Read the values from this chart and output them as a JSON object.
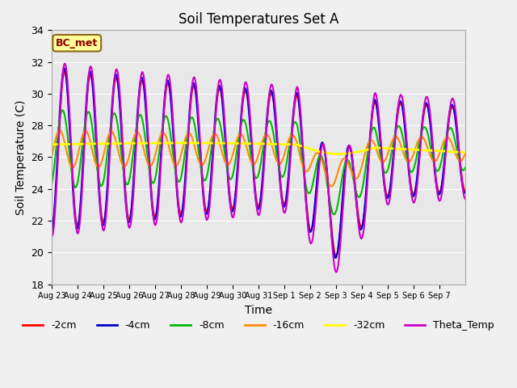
{
  "title": "Soil Temperatures Set A",
  "xlabel": "Time",
  "ylabel": "Soil Temperature (C)",
  "ylim": [
    18,
    34
  ],
  "annotation": "BC_met",
  "annotation_color": "#8B0000",
  "annotation_bg": "#FFFF99",
  "bg_color": "#E8E8E8",
  "fig_bg_color": "#F0F0F0",
  "series": {
    "-2cm": {
      "color": "#FF0000",
      "lw": 1.5
    },
    "-4cm": {
      "color": "#0000CC",
      "lw": 1.5
    },
    "-8cm": {
      "color": "#00BB00",
      "lw": 1.5
    },
    "-16cm": {
      "color": "#FF8C00",
      "lw": 1.5
    },
    "-32cm": {
      "color": "#FFFF00",
      "lw": 2.0
    },
    "Theta_Temp": {
      "color": "#CC00CC",
      "lw": 1.5
    }
  },
  "xtick_labels": [
    "Aug 23",
    "Aug 24",
    "Aug 25",
    "Aug 26",
    "Aug 27",
    "Aug 28",
    "Aug 29",
    "Aug 30",
    "Aug 31",
    "Sep 1",
    "Sep 2",
    "Sep 3",
    "Sep 4",
    "Sep 5",
    "Sep 6",
    "Sep 7"
  ],
  "ytick_values": [
    18,
    20,
    22,
    24,
    26,
    28,
    30,
    32,
    34
  ],
  "n_days": 16
}
